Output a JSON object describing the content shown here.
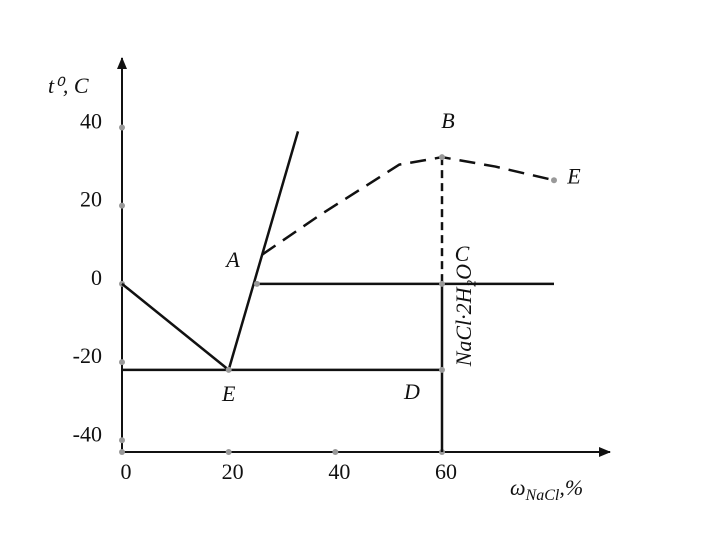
{
  "chart_data": {
    "type": "line",
    "y_label": "t⁰, C",
    "x_label": {
      "symbol": "ω",
      "subscript": "NaCl",
      "unit": ",%"
    },
    "xlim": [
      0,
      90
    ],
    "ylim": [
      -43,
      57
    ],
    "xticks": [
      0,
      20,
      40,
      60
    ],
    "yticks": [
      -40,
      -20,
      0,
      20,
      40
    ],
    "color": "#111",
    "series": [
      {
        "x": [
          0,
          20
        ],
        "values": [
          0,
          -22
        ],
        "style": "solid"
      },
      {
        "x": [
          20,
          33
        ],
        "values": [
          -22,
          39
        ],
        "style": "solid"
      },
      {
        "x": [
          26.3,
          37,
          52,
          60,
          70,
          81
        ],
        "values": [
          7.5,
          17.5,
          30.5,
          32.4,
          30,
          26.5
        ],
        "style": "dashed"
      },
      {
        "x": [
          25.3,
          81
        ],
        "values": [
          0,
          0
        ],
        "style": "solid"
      },
      {
        "x": [
          0,
          60
        ],
        "values": [
          -22,
          -22
        ],
        "style": "solid"
      },
      {
        "x": [
          60,
          60
        ],
        "values": [
          32.4,
          0
        ],
        "style": "dashed"
      },
      {
        "x": [
          60,
          60
        ],
        "values": [
          0,
          -43
        ],
        "style": "solid"
      }
    ],
    "annotations": [
      {
        "text": "A",
        "x": 25.3,
        "y": 0
      },
      {
        "text": "B",
        "x": 60,
        "y": 32.4
      },
      {
        "text": "C",
        "x": 60,
        "y": 0
      },
      {
        "text": "D",
        "x": 60,
        "y": -22
      },
      {
        "text": "E",
        "x": 20,
        "y": -22
      },
      {
        "text": "E",
        "x": 81,
        "y": 26.5
      }
    ],
    "phase_label": {
      "text": "NaCl·2H₂O",
      "x": 60,
      "y": -8
    }
  }
}
